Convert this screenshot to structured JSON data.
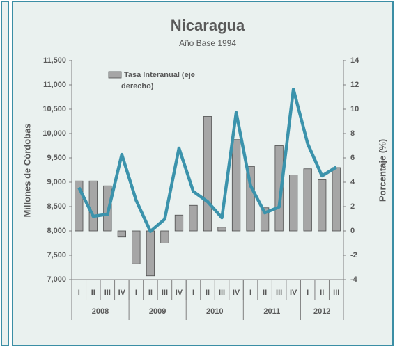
{
  "chart_data": {
    "type": "bar-line",
    "title": "Nicaragua",
    "subtitle": "Año Base 1994",
    "ylabel": "Millones de Córdobas",
    "y2label": "Porcentaje (%)",
    "groups": [
      {
        "name": "2008",
        "categories": [
          "I",
          "II",
          "III",
          "IV"
        ]
      },
      {
        "name": "2009",
        "categories": [
          "I",
          "II",
          "III",
          "IV"
        ]
      },
      {
        "name": "2010",
        "categories": [
          "I",
          "II",
          "III",
          "IV"
        ]
      },
      {
        "name": "2011",
        "categories": [
          "I",
          "II",
          "III",
          "IV"
        ]
      },
      {
        "name": "2012",
        "categories": [
          "I",
          "II",
          "III"
        ]
      }
    ],
    "series": [
      {
        "name": "Tasa Interanual (eje derecho)",
        "type": "bar",
        "axis": "y2",
        "color": "#a6a6a6",
        "values": [
          4.1,
          4.1,
          3.7,
          -0.5,
          -2.7,
          -3.7,
          -1.0,
          1.3,
          2.1,
          9.4,
          0.3,
          7.5,
          5.3,
          1.9,
          7.0,
          4.6,
          5.1,
          4.2,
          5.2
        ]
      },
      {
        "type": "line",
        "axis": "y",
        "color": "#3b93ac",
        "values": [
          8890,
          8300,
          8340,
          9570,
          8630,
          7990,
          8240,
          9700,
          8810,
          8600,
          8270,
          10430,
          8930,
          8370,
          8490,
          10910,
          9790,
          9130,
          9310
        ]
      }
    ],
    "ylim": [
      7000,
      11500
    ],
    "yticks": [
      {
        "value": 7000,
        "label": "7,000"
      },
      {
        "value": 7500,
        "label": "7,500"
      },
      {
        "value": 8000,
        "label": "8,000"
      },
      {
        "value": 8500,
        "label": "8,500"
      },
      {
        "value": 9000,
        "label": "9,000"
      },
      {
        "value": 9500,
        "label": "9,500"
      },
      {
        "value": 10000,
        "label": "10,000"
      },
      {
        "value": 10500,
        "label": "10,500"
      },
      {
        "value": 11000,
        "label": "11,000"
      },
      {
        "value": 11500,
        "label": "11,500"
      }
    ],
    "y2lim": [
      -4,
      14
    ],
    "y2ticks": [
      -4,
      -2,
      0,
      2,
      4,
      6,
      8,
      10,
      12,
      14
    ],
    "grid": false,
    "legend": "top-left"
  }
}
